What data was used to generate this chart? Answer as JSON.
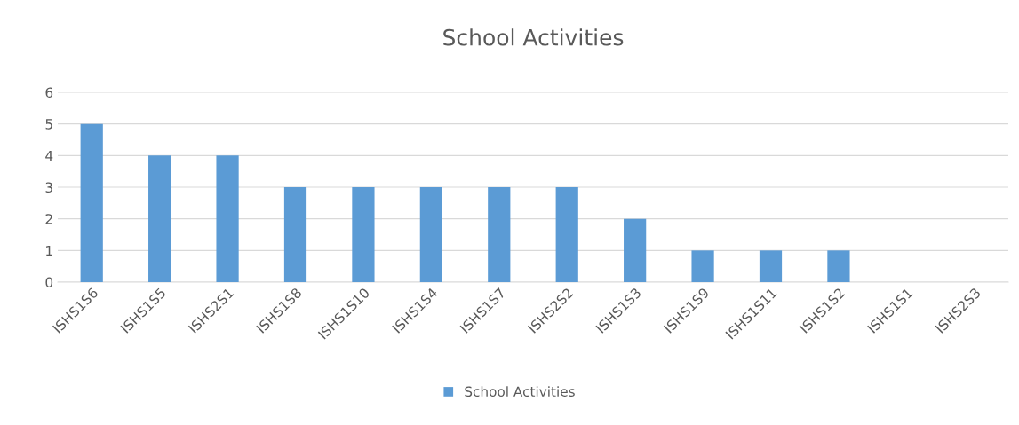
{
  "chart_data": {
    "type": "bar",
    "title": "School Activities",
    "categories": [
      "ISHS1S6",
      "ISHS1S5",
      "ISHS2S1",
      "ISHS1S8",
      "ISHS1S10",
      "ISHS1S4",
      "ISHS1S7",
      "ISHS2S2",
      "ISHS1S3",
      "ISHS1S9",
      "ISHS1S11",
      "ISHS1S2",
      "ISHS1S1",
      "ISHS2S3"
    ],
    "series": [
      {
        "name": "School Activities",
        "color": "#5b9bd5",
        "values": [
          5,
          4,
          4,
          3,
          3,
          3,
          3,
          3,
          2,
          1,
          1,
          1,
          0,
          0
        ]
      }
    ],
    "ylim": [
      0,
      6
    ],
    "yticks": [
      0,
      1,
      2,
      3,
      4,
      5,
      6
    ],
    "grid": "y",
    "legend": "bottom"
  }
}
